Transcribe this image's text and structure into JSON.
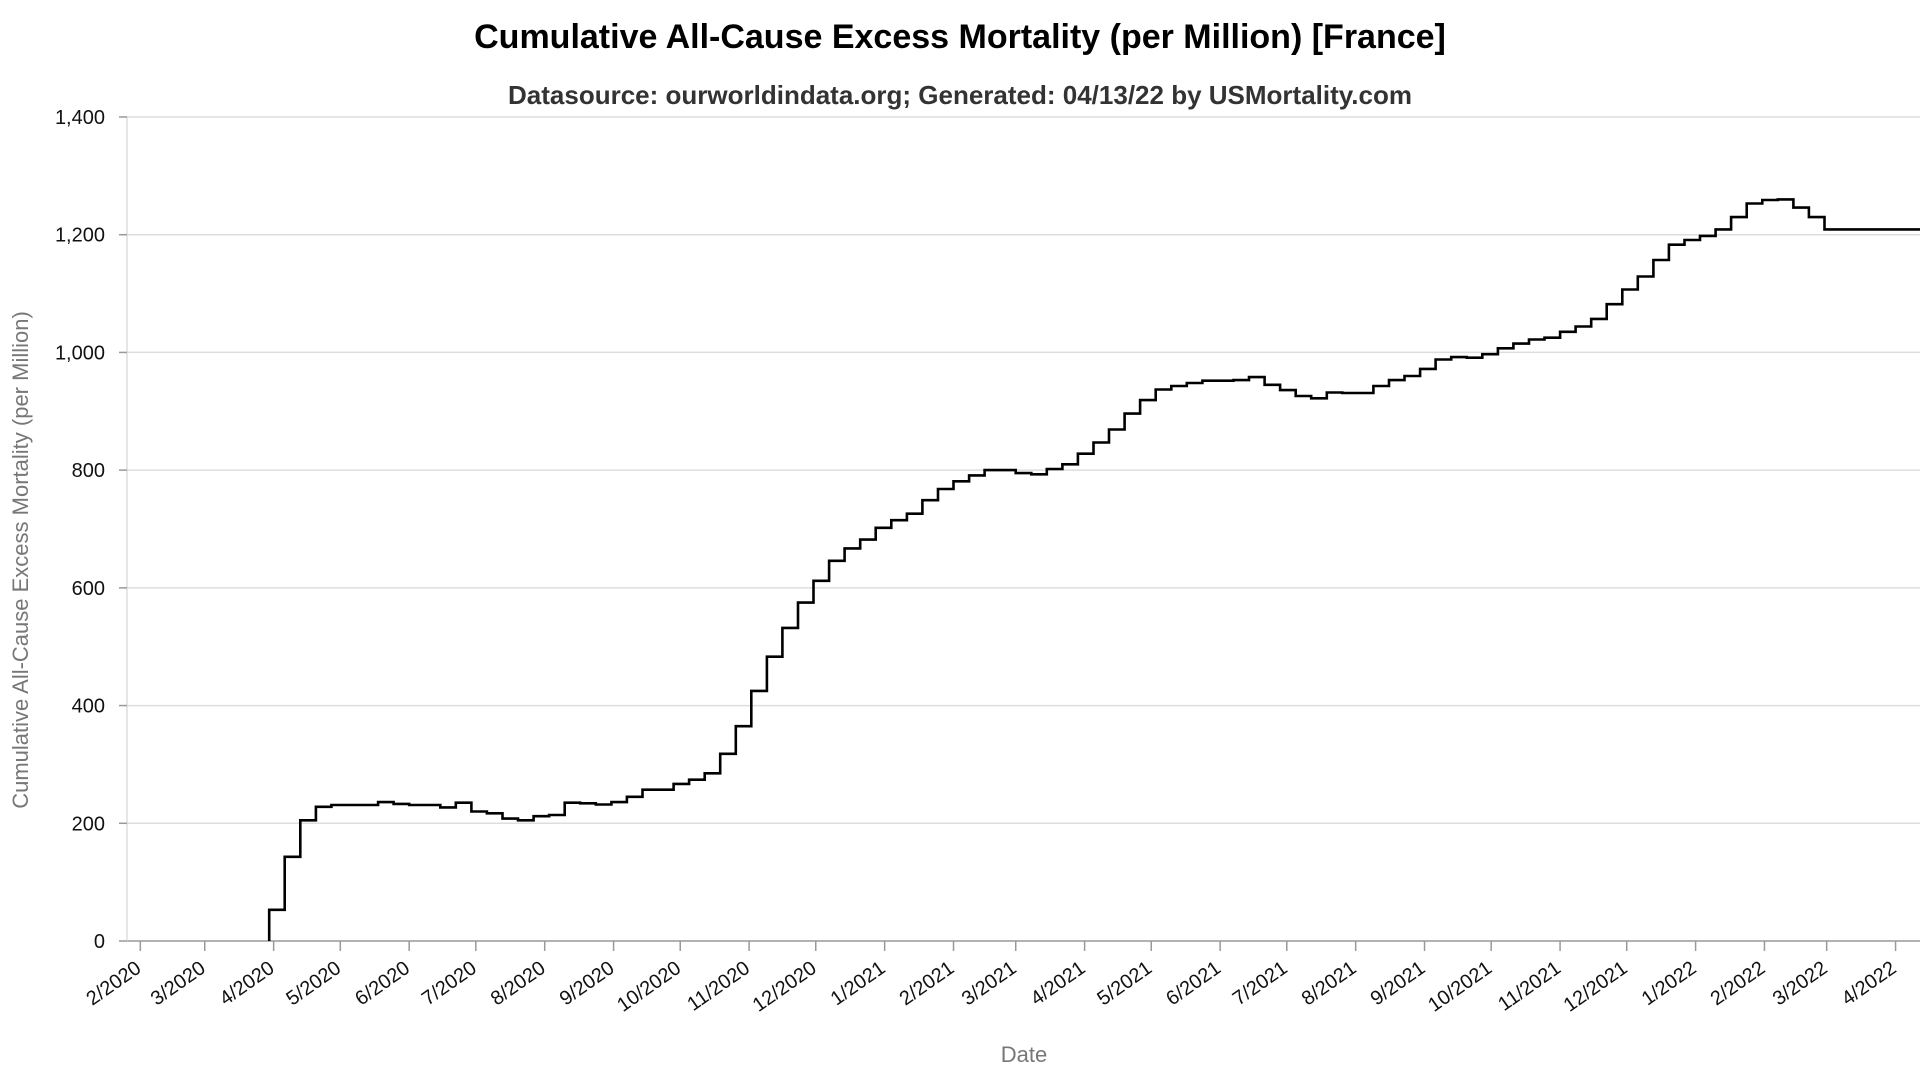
{
  "chart_data": {
    "type": "line",
    "title": "Cumulative All-Cause Excess Mortality (per Million) [France]",
    "subtitle": "Datasource: ourworldindata.org; Generated: 04/13/22 by USMortality.com",
    "xlabel": "Date",
    "ylabel": "Cumulative All-Cause Excess Mortality (per Million)",
    "ylim": [
      0,
      1400
    ],
    "xlim": [
      "2020-01-26",
      "2022-04-12"
    ],
    "grid": true,
    "y_ticks": [
      0,
      200,
      400,
      600,
      800,
      1000,
      1200,
      1400
    ],
    "y_tick_labels": [
      "0",
      "200",
      "400",
      "600",
      "800",
      "1,000",
      "1,200",
      "1,400"
    ],
    "x_ticks": [
      "2020-02-01",
      "2020-03-01",
      "2020-04-01",
      "2020-05-01",
      "2020-06-01",
      "2020-07-01",
      "2020-08-01",
      "2020-09-01",
      "2020-10-01",
      "2020-11-01",
      "2020-12-01",
      "2021-01-01",
      "2021-02-01",
      "2021-03-01",
      "2021-04-01",
      "2021-05-01",
      "2021-06-01",
      "2021-07-01",
      "2021-08-01",
      "2021-09-01",
      "2021-10-01",
      "2021-11-01",
      "2021-12-01",
      "2022-01-01",
      "2022-02-01",
      "2022-03-01",
      "2022-04-01"
    ],
    "x_tick_labels": [
      "2/2020",
      "3/2020",
      "4/2020",
      "5/2020",
      "6/2020",
      "7/2020",
      "8/2020",
      "9/2020",
      "10/2020",
      "11/2020",
      "12/2020",
      "1/2021",
      "2/2021",
      "3/2021",
      "4/2021",
      "5/2021",
      "6/2021",
      "7/2021",
      "8/2021",
      "9/2021",
      "10/2021",
      "11/2021",
      "12/2021",
      "1/2022",
      "2/2022",
      "3/2022",
      "4/2022"
    ],
    "series": [
      {
        "step": true,
        "color": "#000000",
        "x": [
          "2020-03-30",
          "2020-04-06",
          "2020-04-13",
          "2020-04-20",
          "2020-04-27",
          "2020-05-04",
          "2020-05-11",
          "2020-05-18",
          "2020-05-25",
          "2020-06-01",
          "2020-06-08",
          "2020-06-15",
          "2020-06-22",
          "2020-06-29",
          "2020-07-06",
          "2020-07-13",
          "2020-07-20",
          "2020-07-27",
          "2020-08-03",
          "2020-08-10",
          "2020-08-17",
          "2020-08-24",
          "2020-08-31",
          "2020-09-07",
          "2020-09-14",
          "2020-09-21",
          "2020-09-28",
          "2020-10-05",
          "2020-10-12",
          "2020-10-19",
          "2020-10-26",
          "2020-11-02",
          "2020-11-09",
          "2020-11-16",
          "2020-11-23",
          "2020-11-30",
          "2020-12-07",
          "2020-12-14",
          "2020-12-21",
          "2020-12-28",
          "2021-01-04",
          "2021-01-11",
          "2021-01-18",
          "2021-01-25",
          "2021-02-01",
          "2021-02-08",
          "2021-02-15",
          "2021-02-22",
          "2021-03-01",
          "2021-03-08",
          "2021-03-15",
          "2021-03-22",
          "2021-03-29",
          "2021-04-05",
          "2021-04-12",
          "2021-04-19",
          "2021-04-26",
          "2021-05-03",
          "2021-05-10",
          "2021-05-17",
          "2021-05-24",
          "2021-05-31",
          "2021-06-07",
          "2021-06-14",
          "2021-06-21",
          "2021-06-28",
          "2021-07-05",
          "2021-07-12",
          "2021-07-19",
          "2021-07-26",
          "2021-08-02",
          "2021-08-09",
          "2021-08-16",
          "2021-08-23",
          "2021-08-30",
          "2021-09-06",
          "2021-09-13",
          "2021-09-20",
          "2021-09-27",
          "2021-10-04",
          "2021-10-11",
          "2021-10-18",
          "2021-10-25",
          "2021-11-01",
          "2021-11-08",
          "2021-11-15",
          "2021-11-22",
          "2021-11-29",
          "2021-12-06",
          "2021-12-13",
          "2021-12-20",
          "2021-12-27",
          "2022-01-03",
          "2022-01-10",
          "2022-01-17",
          "2022-01-24",
          "2022-01-31",
          "2022-02-07",
          "2022-02-14",
          "2022-02-21",
          "2022-02-28",
          "2022-03-07",
          "2022-03-14",
          "2022-04-12"
        ],
        "y": [
          53,
          143,
          205,
          228,
          231,
          231,
          231,
          236,
          233,
          231,
          231,
          227,
          235,
          220,
          217,
          208,
          205,
          212,
          214,
          235,
          234,
          232,
          236,
          245,
          257,
          257,
          267,
          274,
          285,
          318,
          365,
          425,
          483,
          532,
          575,
          612,
          646,
          667,
          682,
          702,
          715,
          726,
          749,
          768,
          781,
          791,
          800,
          800,
          795,
          793,
          802,
          810,
          828,
          847,
          869,
          896,
          919,
          937,
          943,
          948,
          952,
          952,
          953,
          958,
          945,
          936,
          926,
          922,
          932,
          931,
          931,
          943,
          953,
          960,
          972,
          988,
          992,
          991,
          997,
          1007,
          1015,
          1022,
          1025,
          1035,
          1044,
          1057,
          1082,
          1107,
          1129,
          1157,
          1183,
          1191,
          1198,
          1209,
          1230,
          1253,
          1259,
          1260,
          1246,
          1230,
          1209,
          1209,
          1209,
          1209
        ]
      }
    ]
  }
}
